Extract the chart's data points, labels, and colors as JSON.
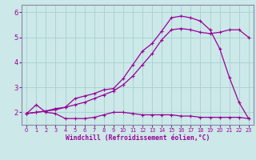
{
  "title": "",
  "xlabel": "Windchill (Refroidissement éolien,°C)",
  "bg_color": "#cce8e8",
  "line_color": "#990099",
  "grid_color": "#aad4d4",
  "spine_color": "#8888aa",
  "xlim": [
    -0.5,
    23.5
  ],
  "ylim": [
    1.5,
    6.3
  ],
  "xticks": [
    0,
    1,
    2,
    3,
    4,
    5,
    6,
    7,
    8,
    9,
    10,
    11,
    12,
    13,
    14,
    15,
    16,
    17,
    18,
    19,
    20,
    21,
    22,
    23
  ],
  "yticks": [
    2,
    3,
    4,
    5,
    6
  ],
  "line1_x": [
    0,
    1,
    2,
    3,
    4,
    5,
    6,
    7,
    8,
    9,
    10,
    11,
    12,
    13,
    14,
    15,
    16,
    17,
    18,
    19,
    20,
    21,
    22,
    23
  ],
  "line1_y": [
    1.95,
    2.3,
    2.0,
    1.95,
    1.75,
    1.75,
    1.75,
    1.8,
    1.9,
    2.0,
    2.0,
    1.95,
    1.9,
    1.9,
    1.9,
    1.9,
    1.85,
    1.85,
    1.8,
    1.8,
    1.8,
    1.8,
    1.8,
    1.75
  ],
  "line2_x": [
    0,
    1,
    2,
    3,
    4,
    5,
    6,
    7,
    8,
    9,
    10,
    11,
    12,
    13,
    14,
    15,
    16,
    17,
    18,
    19,
    20,
    21,
    22,
    23
  ],
  "line2_y": [
    1.95,
    2.0,
    2.05,
    2.1,
    2.2,
    2.3,
    2.4,
    2.55,
    2.7,
    2.85,
    3.1,
    3.45,
    3.9,
    4.35,
    4.9,
    5.3,
    5.35,
    5.3,
    5.2,
    5.15,
    5.2,
    5.3,
    5.3,
    5.0
  ],
  "line3_x": [
    0,
    1,
    2,
    3,
    4,
    5,
    6,
    7,
    8,
    9,
    10,
    11,
    12,
    13,
    14,
    15,
    16,
    17,
    18,
    19,
    20,
    21,
    22,
    23
  ],
  "line3_y": [
    1.95,
    2.0,
    2.05,
    2.15,
    2.2,
    2.55,
    2.65,
    2.75,
    2.9,
    2.95,
    3.35,
    3.9,
    4.45,
    4.75,
    5.25,
    5.78,
    5.85,
    5.78,
    5.65,
    5.3,
    4.55,
    3.4,
    2.4,
    1.75
  ]
}
